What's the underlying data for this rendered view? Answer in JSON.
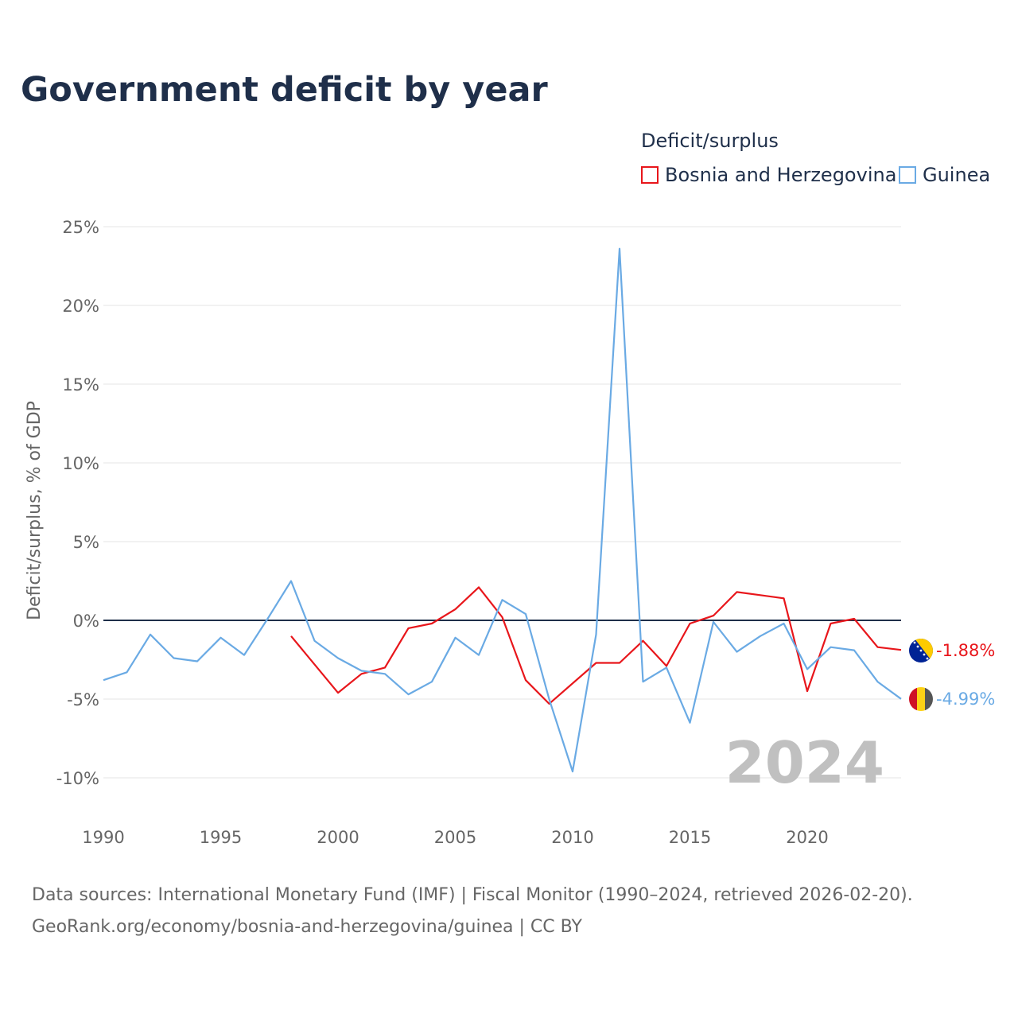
{
  "title": "Government deficit by year",
  "legend": {
    "title": "Deficit/surplus",
    "items": [
      {
        "label": "Bosnia and Herzegovina",
        "color": "#e8161b"
      },
      {
        "label": "Guinea",
        "color": "#6aaae4"
      }
    ]
  },
  "watermark_year": "2024",
  "source_line1": "Data sources: International Monetary Fund (IMF) | Fiscal Monitor (1990–2024, retrieved 2026-02-20).",
  "source_line2": "GeoRank.org/economy/bosnia-and-herzegovina/guinea | CC BY",
  "chart_data": {
    "type": "line",
    "title": "Government deficit by year",
    "xlabel": "",
    "ylabel": "Deficit/surplus, % of GDP",
    "xlim": [
      1990,
      2024
    ],
    "ylim": [
      -12,
      26
    ],
    "x_ticks": [
      1990,
      1995,
      2000,
      2005,
      2010,
      2015,
      2020
    ],
    "y_ticks": [
      {
        "value": 25,
        "label": "25%"
      },
      {
        "value": 20,
        "label": "20%"
      },
      {
        "value": 15,
        "label": "15%"
      },
      {
        "value": 10,
        "label": "10%"
      },
      {
        "value": 5,
        "label": "5%"
      },
      {
        "value": 0,
        "label": "0%"
      },
      {
        "value": -5,
        "label": "-5%"
      },
      {
        "value": -10,
        "label": "-10%"
      }
    ],
    "series": [
      {
        "name": "Bosnia and Herzegovina",
        "color": "#e8161b",
        "end_label": "-1.88%",
        "points": [
          [
            1998,
            -1.0
          ],
          [
            2000,
            -4.6
          ],
          [
            2001,
            -3.4
          ],
          [
            2002,
            -3.0
          ],
          [
            2003,
            -0.5
          ],
          [
            2004,
            -0.2
          ],
          [
            2005,
            0.7
          ],
          [
            2006,
            2.1
          ],
          [
            2007,
            0.2
          ],
          [
            2008,
            -3.8
          ],
          [
            2009,
            -5.3
          ],
          [
            2011,
            -2.7
          ],
          [
            2012,
            -2.7
          ],
          [
            2013,
            -1.3
          ],
          [
            2014,
            -2.9
          ],
          [
            2015,
            -0.2
          ],
          [
            2016,
            0.3
          ],
          [
            2017,
            1.8
          ],
          [
            2018,
            1.6
          ],
          [
            2019,
            1.4
          ],
          [
            2020,
            -4.5
          ],
          [
            2021,
            -0.2
          ],
          [
            2022,
            0.1
          ],
          [
            2023,
            -1.7
          ],
          [
            2024,
            -1.88
          ]
        ]
      },
      {
        "name": "Guinea",
        "color": "#6aaae4",
        "end_label": "-4.99%",
        "points": [
          [
            1990,
            -3.8
          ],
          [
            1991,
            -3.3
          ],
          [
            1992,
            -0.9
          ],
          [
            1993,
            -2.4
          ],
          [
            1994,
            -2.6
          ],
          [
            1995,
            -1.1
          ],
          [
            1996,
            -2.2
          ],
          [
            1997,
            0.1
          ],
          [
            1998,
            2.5
          ],
          [
            1999,
            -1.3
          ],
          [
            2000,
            -2.4
          ],
          [
            2001,
            -3.2
          ],
          [
            2002,
            -3.4
          ],
          [
            2003,
            -4.7
          ],
          [
            2004,
            -3.9
          ],
          [
            2005,
            -1.1
          ],
          [
            2006,
            -2.2
          ],
          [
            2007,
            1.3
          ],
          [
            2008,
            0.4
          ],
          [
            2009,
            -5.0
          ],
          [
            2010,
            -9.6
          ],
          [
            2011,
            -0.9
          ],
          [
            2012,
            23.6
          ],
          [
            2013,
            -3.9
          ],
          [
            2014,
            -3.0
          ],
          [
            2015,
            -6.5
          ],
          [
            2016,
            -0.1
          ],
          [
            2017,
            -2.0
          ],
          [
            2018,
            -1.0
          ],
          [
            2019,
            -0.2
          ],
          [
            2020,
            -3.1
          ],
          [
            2021,
            -1.7
          ],
          [
            2022,
            -1.9
          ],
          [
            2023,
            -3.9
          ],
          [
            2024,
            -4.99
          ]
        ]
      }
    ]
  }
}
